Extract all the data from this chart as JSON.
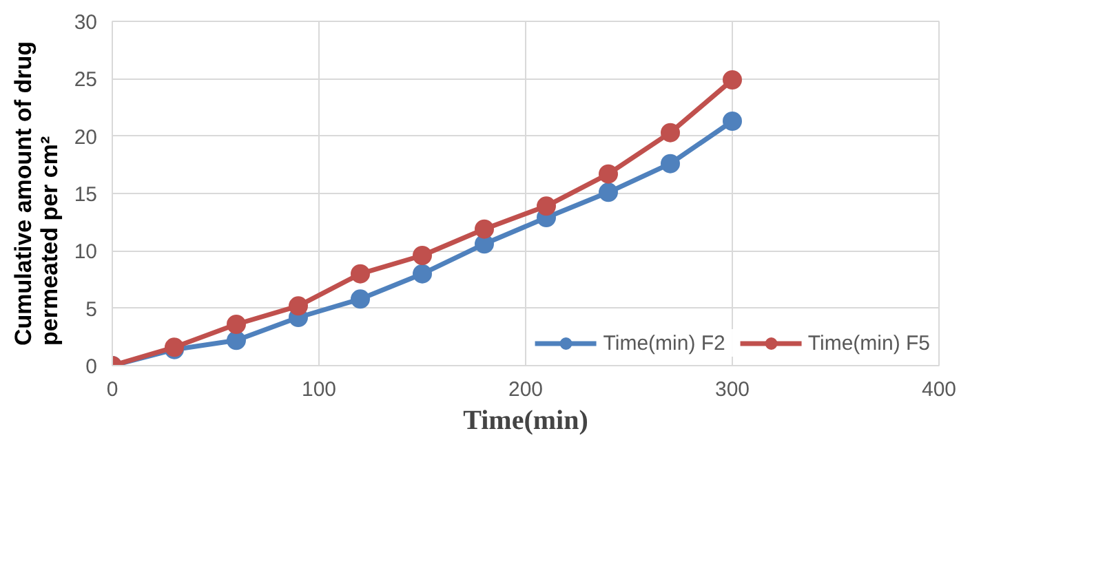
{
  "chart_data": {
    "type": "line",
    "xlabel": "Time(min)",
    "ylabel": "Cumulative amount of drug\npermeated per cm²",
    "x": [
      0,
      30,
      60,
      90,
      120,
      150,
      180,
      210,
      240,
      270,
      300
    ],
    "series": [
      {
        "name": "Time(min) F2",
        "color": "#4f81bd",
        "values": [
          0,
          1.4,
          2.2,
          4.2,
          5.8,
          8.0,
          10.6,
          12.9,
          15.1,
          17.6,
          21.3
        ]
      },
      {
        "name": "Time(min) F5",
        "color": "#c0504d",
        "values": [
          0,
          1.6,
          3.6,
          5.2,
          8.0,
          9.6,
          11.9,
          13.9,
          16.7,
          20.3,
          24.9
        ]
      }
    ],
    "xlim": [
      0,
      400
    ],
    "xticks": [
      0,
      100,
      200,
      300,
      400
    ],
    "ylim": [
      0,
      30
    ],
    "yticks": [
      0,
      5,
      10,
      15,
      20,
      25,
      30
    ],
    "grid": true,
    "legend": "bottom",
    "marker": "circle",
    "line_style": "solid"
  }
}
